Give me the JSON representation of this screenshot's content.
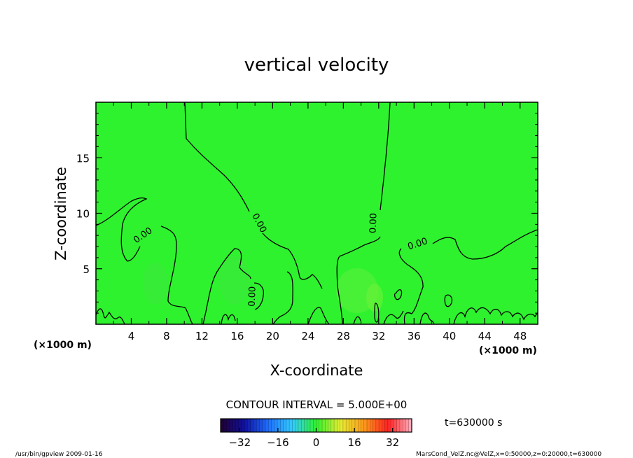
{
  "chart_data": {
    "type": "contour",
    "title": "vertical velocity",
    "xlabel": "X-coordinate",
    "ylabel": "Z-coordinate",
    "x_unit": "(×1000 m)",
    "y_unit": "(×1000 m)",
    "xlim": [
      0,
      50
    ],
    "ylim": [
      0,
      20
    ],
    "x_ticks": [
      4,
      8,
      12,
      16,
      20,
      24,
      28,
      32,
      36,
      40,
      44,
      48
    ],
    "y_ticks": [
      5,
      10,
      15
    ],
    "field_color": "#2ef22e",
    "contour_levels": [
      0
    ],
    "contour_label": "0.00",
    "contour_interval_text": "CONTOUR INTERVAL = 5.000E+00",
    "colorbar": {
      "range": [
        -40,
        40
      ],
      "ticks": [
        "−32",
        "−16",
        "0",
        "16",
        "32"
      ],
      "colors": [
        "#200030",
        "#1010a0",
        "#1f6fff",
        "#33ccff",
        "#2ef22e",
        "#e6ee33",
        "#ff9a1a",
        "#ff2222",
        "#ffb0c0"
      ]
    },
    "time_label": "t=630000 s"
  },
  "footer": {
    "left": "/usr/bin/gpview   2009-01-16",
    "right": "MarsCond_VelZ.nc@VelZ,x=0:50000,z=0:20000,t=630000"
  }
}
